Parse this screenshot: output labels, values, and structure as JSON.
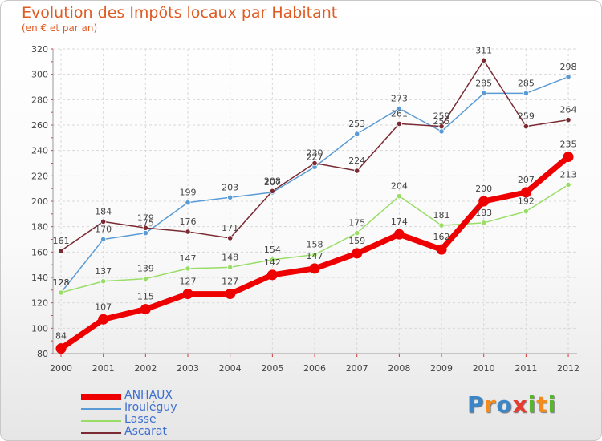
{
  "chart_data": {
    "type": "line",
    "title": "Evolution des Impôts locaux par Habitant",
    "subtitle": "(en € et par an)",
    "xlabel": "",
    "ylabel": "",
    "x": [
      2000,
      2001,
      2002,
      2003,
      2004,
      2005,
      2006,
      2007,
      2008,
      2009,
      2010,
      2011,
      2012
    ],
    "ylim": [
      80,
      320
    ],
    "yticks": [
      80,
      100,
      120,
      140,
      160,
      180,
      200,
      220,
      240,
      260,
      280,
      300,
      320
    ],
    "grid": true,
    "legend_position": "bottom-left",
    "series": [
      {
        "name": "Irouléguy",
        "color": "#5b9bd5",
        "values": [
          128,
          170,
          175,
          199,
          203,
          207,
          227,
          253,
          273,
          255,
          285,
          285,
          298
        ]
      },
      {
        "name": "Lasse",
        "color": "#99dd66",
        "values": [
          128,
          137,
          139,
          147,
          148,
          154,
          158,
          175,
          204,
          181,
          183,
          192,
          213
        ]
      },
      {
        "name": "Ascarat",
        "color": "#7a2a32",
        "values": [
          161,
          184,
          179,
          176,
          171,
          208,
          230,
          224,
          261,
          259,
          311,
          259,
          264
        ]
      },
      {
        "name": "ANHAUX",
        "color": "#ee0000",
        "values": [
          84,
          107,
          115,
          127,
          127,
          142,
          147,
          159,
          174,
          162,
          200,
          207,
          235
        ]
      }
    ]
  },
  "legend": {
    "items": [
      {
        "label": "ANHAUX",
        "color": "#ee0000"
      },
      {
        "label": "Irouléguy",
        "color": "#5b9bd5"
      },
      {
        "label": "Lasse",
        "color": "#99dd66"
      },
      {
        "label": "Ascarat",
        "color": "#7a2a32"
      }
    ]
  },
  "logo": {
    "letters": [
      "P",
      "r",
      "o",
      "x",
      "i",
      "t",
      "i"
    ]
  }
}
